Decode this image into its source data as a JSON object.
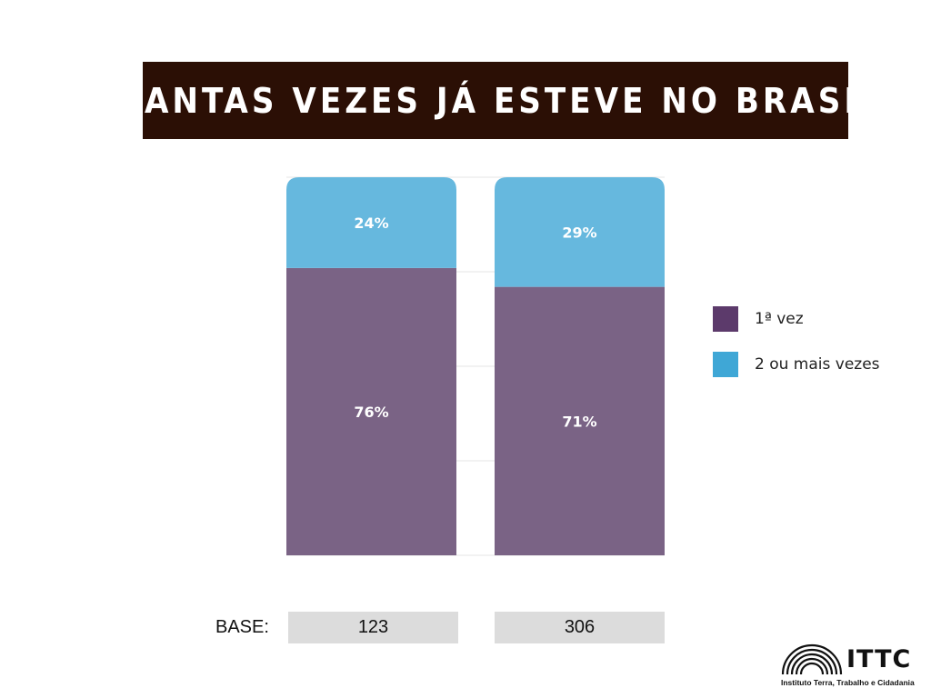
{
  "title": "QUANTAS VEZES JÁ ESTEVE NO BRASIL?",
  "colors": {
    "banner": "#2b0f05",
    "series_1": "#7a6385",
    "series_2": "#66b8de",
    "legend_1": "#5c3a6b",
    "legend_2": "#3fa7d6",
    "base_box": "#dcdcdc"
  },
  "chart_data": {
    "type": "bar",
    "stacked": true,
    "categories": [
      "",
      ""
    ],
    "series": [
      {
        "name": "1ª vez",
        "values": [
          76,
          71
        ]
      },
      {
        "name": "2 ou mais vezes",
        "values": [
          24,
          29
        ]
      }
    ],
    "value_labels": [
      [
        "76%",
        "71%"
      ],
      [
        "24%",
        "29%"
      ]
    ],
    "ylim": [
      0,
      100
    ],
    "grid": true,
    "legend_position": "right"
  },
  "legend": [
    {
      "label": "1ª vez",
      "icon": "swatch-purple"
    },
    {
      "label": "2 ou mais vezes",
      "icon": "swatch-blue"
    }
  ],
  "base": {
    "label": "BASE:",
    "values": [
      "123",
      "306"
    ]
  },
  "logo": {
    "name": "ITTC",
    "caption": "Instituto Terra, Trabalho e Cidadania",
    "icon": "ittc-logo-icon"
  }
}
